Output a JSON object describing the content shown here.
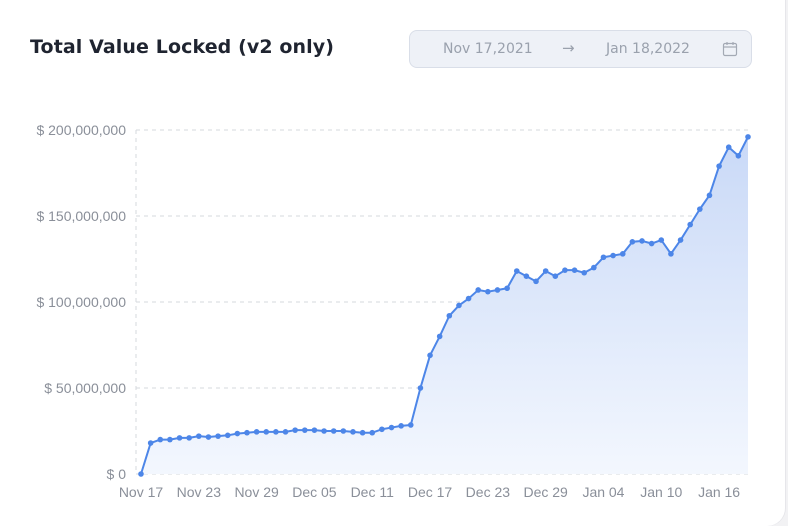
{
  "header": {
    "title": "Total Value Locked (v2 only)"
  },
  "date_range": {
    "start": "Nov 17,2021",
    "arrow": "→",
    "end": "Jan 18,2022",
    "icon": "calendar-icon"
  },
  "colors": {
    "line": "#4d86e8",
    "fill_top": "#c9d9f7",
    "fill_bottom": "#f3f7fe",
    "grid": "#d6d9de",
    "axis_text": "#8a8f99"
  },
  "chart_data": {
    "type": "area",
    "title": "Total Value Locked (v2 only)",
    "xlabel": "",
    "ylabel": "",
    "ylim": [
      0,
      200000000
    ],
    "yticks": [
      {
        "value": 0,
        "label": "$ 0"
      },
      {
        "value": 50000000,
        "label": "$ 50,000,000"
      },
      {
        "value": 100000000,
        "label": "$ 100,000,000"
      },
      {
        "value": 150000000,
        "label": "$ 150,000,000"
      },
      {
        "value": 200000000,
        "label": "$ 200,000,000"
      }
    ],
    "xticks": [
      "Nov 17",
      "Nov 23",
      "Nov 29",
      "Dec 05",
      "Dec 11",
      "Dec 17",
      "Dec 23",
      "Dec 29",
      "Jan 04",
      "Jan 10",
      "Jan 16"
    ],
    "grid": true,
    "series": [
      {
        "values": [
          0,
          18000000,
          20000000,
          20000000,
          21000000,
          21000000,
          22000000,
          21500000,
          22000000,
          22500000,
          23500000,
          24000000,
          24500000,
          24500000,
          24500000,
          24500000,
          25500000,
          25500000,
          25500000,
          25000000,
          25000000,
          25000000,
          24500000,
          24000000,
          24000000,
          26000000,
          27000000,
          28000000,
          28500000,
          50000000,
          69000000,
          80000000,
          92000000,
          98000000,
          102000000,
          107000000,
          106000000,
          107000000,
          108000000,
          118000000,
          115000000,
          112000000,
          118000000,
          115000000,
          118500000,
          118500000,
          117000000,
          120000000,
          126000000,
          127000000,
          128000000,
          135000000,
          135500000,
          134000000,
          136000000,
          128000000,
          136000000,
          145000000,
          154000000,
          162000000,
          179000000,
          190000000,
          185000000,
          196000000
        ]
      }
    ]
  }
}
